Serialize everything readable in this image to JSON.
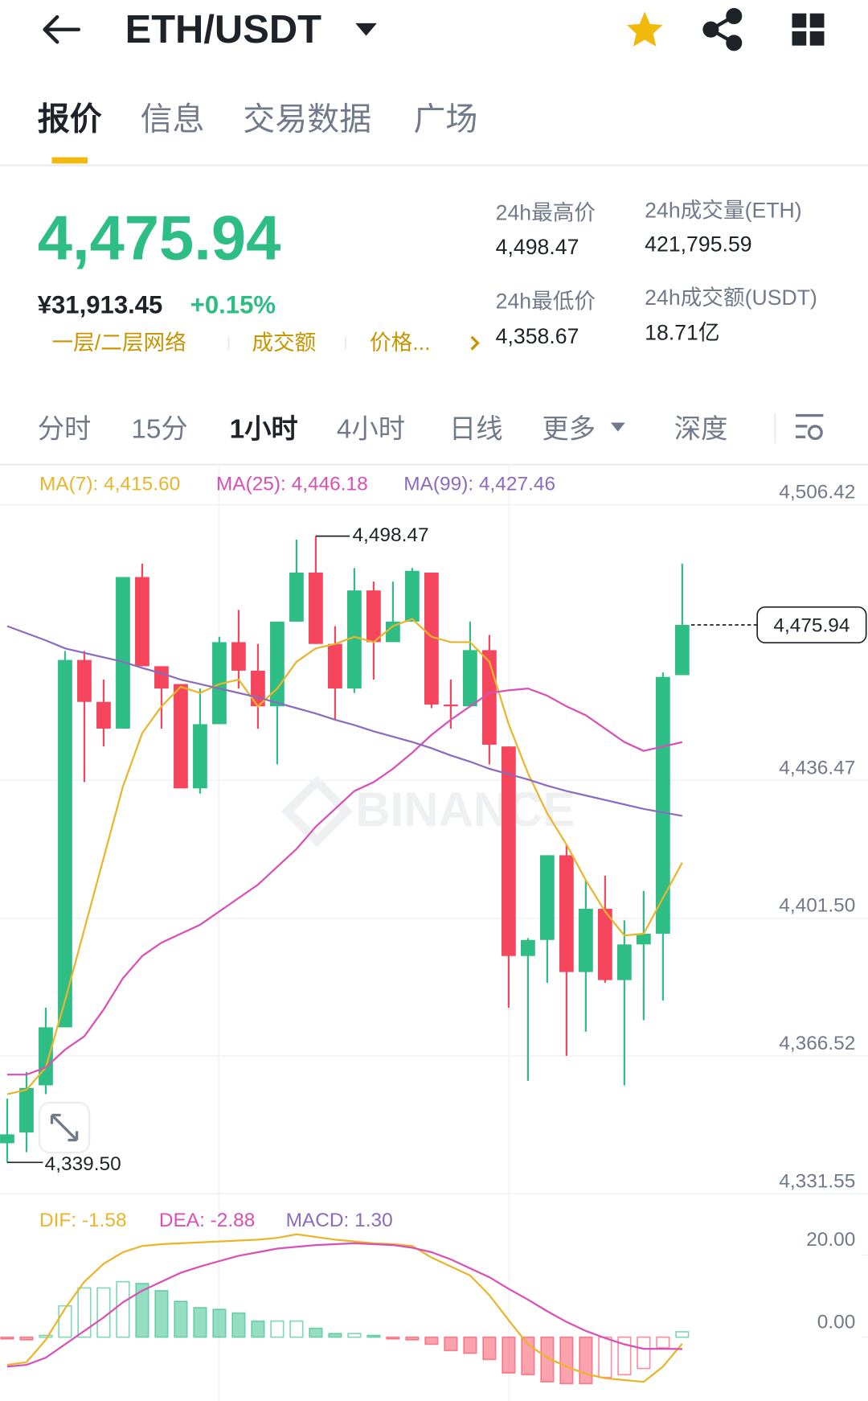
{
  "header": {
    "title": "ETH/USDT"
  },
  "tabs": [
    "报价",
    "信息",
    "交易数据",
    "广场"
  ],
  "ticker": {
    "price": "4,475.94",
    "cny": "¥31,913.45",
    "change": "+0.15%",
    "tags": [
      "一层/二层网络",
      "成交额",
      "价格..."
    ],
    "stats": [
      {
        "label": "24h最高价",
        "value": "4,498.47"
      },
      {
        "label": "24h最低价",
        "value": "4,358.67"
      },
      {
        "label": "24h成交量(ETH)",
        "value": "421,795.59"
      },
      {
        "label": "24h成交额(USDT)",
        "value": "18.71亿"
      }
    ]
  },
  "intervals": [
    "分时",
    "15分",
    "1小时",
    "4小时",
    "日线",
    "更多",
    "深度"
  ],
  "chart_data": [
    {
      "type": "candlestick",
      "watermark": "BINANCE",
      "up_color": "#2ebd85",
      "down_color": "#f6465d",
      "ylim": [
        4331.55,
        4506.42
      ],
      "yticks": [
        {
          "value": 4331.55,
          "label": "4,331.55"
        },
        {
          "value": 4366.52,
          "label": "4,366.52"
        },
        {
          "value": 4401.5,
          "label": "4,401.50"
        },
        {
          "value": 4436.47,
          "label": "4,436.47"
        },
        {
          "value": 4506.42,
          "label": "4,506.42"
        }
      ],
      "high_label": "4,498.47",
      "low_label": "4,339.50",
      "last_label": "4,475.94",
      "open": [
        4344.36,
        4347.08,
        4359.07,
        4373.78,
        4467.04,
        4456.4,
        4449.61,
        4488.09,
        4465.45,
        4460.92,
        4434.44,
        4450.74,
        4471.56,
        4464.32,
        4455.27,
        4476.77,
        4489.22,
        4471.11,
        4459.79,
        4484.69,
        4471.56,
        4476.77,
        4489.22,
        4455.72,
        4455.27,
        4469.53,
        4445.08,
        4391.89,
        4395.96,
        4417.47,
        4387.82,
        4403.89,
        4385.78,
        4394.83,
        4397.55,
        4463.19
      ],
      "high": [
        4355.68,
        4362.46,
        4378.76,
        4469.3,
        4469.3,
        4462.06,
        4488.09,
        4491.48,
        4465.45,
        4460.92,
        4459.79,
        4472.92,
        4479.71,
        4471.11,
        4476.77,
        4497.59,
        4498.47,
        4475.64,
        4490.35,
        4486.95,
        4486.95,
        4490.35,
        4489.22,
        4462.06,
        4476.77,
        4473.37,
        4445.08,
        4396.42,
        4417.47,
        4420.18,
        4411.13,
        4412.26,
        4400.94,
        4408.41,
        4463.87,
        4491.48
      ],
      "low": [
        4339.5,
        4342.1,
        4356.81,
        4373.78,
        4436.03,
        4445.08,
        4449.61,
        4465.45,
        4449.61,
        4434.44,
        4433.08,
        4450.74,
        4459.79,
        4449.61,
        4440.55,
        4476.77,
        4471.11,
        4451.87,
        4458.66,
        4462.06,
        4471.56,
        4476.77,
        4454.81,
        4449.61,
        4455.27,
        4440.55,
        4378.76,
        4360.2,
        4385.1,
        4366.54,
        4372.65,
        4385.1,
        4359.07,
        4375.59,
        4380.57,
        4463.19
      ],
      "close": [
        4346.62,
        4358.39,
        4373.78,
        4467.04,
        4456.4,
        4449.61,
        4488.09,
        4465.45,
        4459.79,
        4434.44,
        4450.74,
        4471.56,
        4464.32,
        4455.27,
        4476.77,
        4489.22,
        4471.11,
        4459.79,
        4484.69,
        4471.56,
        4476.77,
        4489.67,
        4455.72,
        4455.27,
        4469.53,
        4445.53,
        4391.89,
        4395.96,
        4417.47,
        4387.82,
        4403.89,
        4385.78,
        4394.83,
        4397.55,
        4462.74,
        4475.94
      ],
      "lines": [
        {
          "name": "MA(7): 4,415.60",
          "color": "#e9b52a",
          "values": [
            4356.8,
            4357.93,
            4363.59,
            4380.57,
            4398.68,
            4416.78,
            4434.89,
            4448.47,
            4455.26,
            4460.24,
            4458.66,
            4460.92,
            4462.05,
            4455.26,
            4459.79,
            4466.58,
            4469.98,
            4471.11,
            4472.92,
            4471.56,
            4475.63,
            4477.45,
            4472.92,
            4471.56,
            4471.56,
            4466.58,
            4450.74,
            4438.29,
            4428.1,
            4420.18,
            4411.13,
            4403.2,
            4397.09,
            4397.54,
            4406.6,
            4415.6
          ]
        },
        {
          "name": "MA(25): 4,446.18",
          "color": "#d94fb5",
          "values": [
            4361.78,
            4361.78,
            4363.59,
            4368.12,
            4371.51,
            4378.3,
            4386.23,
            4391.89,
            4395.28,
            4397.54,
            4399.81,
            4403.2,
            4406.6,
            4409.99,
            4414.52,
            4419.05,
            4424.71,
            4429.23,
            4433.76,
            4436.02,
            4439.42,
            4443.49,
            4448.02,
            4451.87,
            4455.26,
            4458.66,
            4459.34,
            4459.79,
            4457.98,
            4455.26,
            4453.0,
            4449.6,
            4446.21,
            4443.95,
            4445.08,
            4446.18
          ]
        },
        {
          "name": "MA(99): 4,427.46",
          "color": "#8a6bbf",
          "values": [
            4475.63,
            4473.82,
            4472.01,
            4469.98,
            4468.84,
            4467.71,
            4466.58,
            4465.0,
            4463.64,
            4462.05,
            4460.92,
            4459.79,
            4458.66,
            4457.53,
            4456.17,
            4454.81,
            4453.45,
            4451.87,
            4450.51,
            4448.93,
            4447.57,
            4446.21,
            4444.63,
            4442.81,
            4441.23,
            4439.42,
            4438.06,
            4436.7,
            4435.12,
            4433.76,
            4432.63,
            4431.5,
            4430.36,
            4429.23,
            4428.33,
            4427.46
          ]
        }
      ]
    },
    {
      "type": "macd",
      "ylim": [
        -14,
        34
      ],
      "yticks": [
        {
          "value": 0,
          "label": "0.00"
        },
        {
          "value": 20,
          "label": "20.00"
        }
      ],
      "series": [
        {
          "name": "DIF: -1.58",
          "kind": "line",
          "color": "#e9b52a",
          "values": [
            -6.74,
            -6.09,
            -0.65,
            6.96,
            13.48,
            17.83,
            20.65,
            22.17,
            22.61,
            22.83,
            23.04,
            23.26,
            23.48,
            23.7,
            24.13,
            25.0,
            24.35,
            23.7,
            23.26,
            22.83,
            22.61,
            22.17,
            19.35,
            17.17,
            15.0,
            10.22,
            4.13,
            -1.74,
            -5.0,
            -7.17,
            -8.91,
            -10.0,
            -10.43,
            -10.87,
            -7.17,
            -1.58
          ]
        },
        {
          "name": "DEA: -2.88",
          "kind": "line",
          "color": "#d94fb5",
          "values": [
            -7.17,
            -6.74,
            -5.0,
            -1.74,
            1.52,
            4.78,
            8.48,
            11.3,
            13.48,
            15.65,
            17.17,
            18.48,
            19.78,
            20.65,
            21.52,
            21.96,
            22.39,
            22.61,
            22.83,
            22.61,
            22.39,
            21.74,
            20.65,
            18.91,
            16.74,
            14.57,
            11.74,
            9.13,
            6.3,
            3.7,
            1.52,
            -0.22,
            -1.74,
            -2.83,
            -2.83,
            -2.88
          ]
        },
        {
          "name": "MACD: 1.30",
          "kind": "histogram",
          "color": "#8a6bbf",
          "values": [
            -0.43,
            -0.65,
            0.43,
            7.61,
            11.96,
            11.96,
            13.48,
            13.04,
            11.3,
            8.7,
            7.17,
            6.74,
            5.87,
            3.91,
            3.91,
            3.91,
            2.17,
            0.87,
            0.87,
            0.43,
            -0.43,
            -0.65,
            -1.74,
            -3.26,
            -3.91,
            -5.43,
            -8.7,
            -9.13,
            -10.87,
            -11.3,
            -11.3,
            -9.78,
            -9.13,
            -7.61,
            -2.61,
            1.3
          ]
        }
      ]
    }
  ]
}
